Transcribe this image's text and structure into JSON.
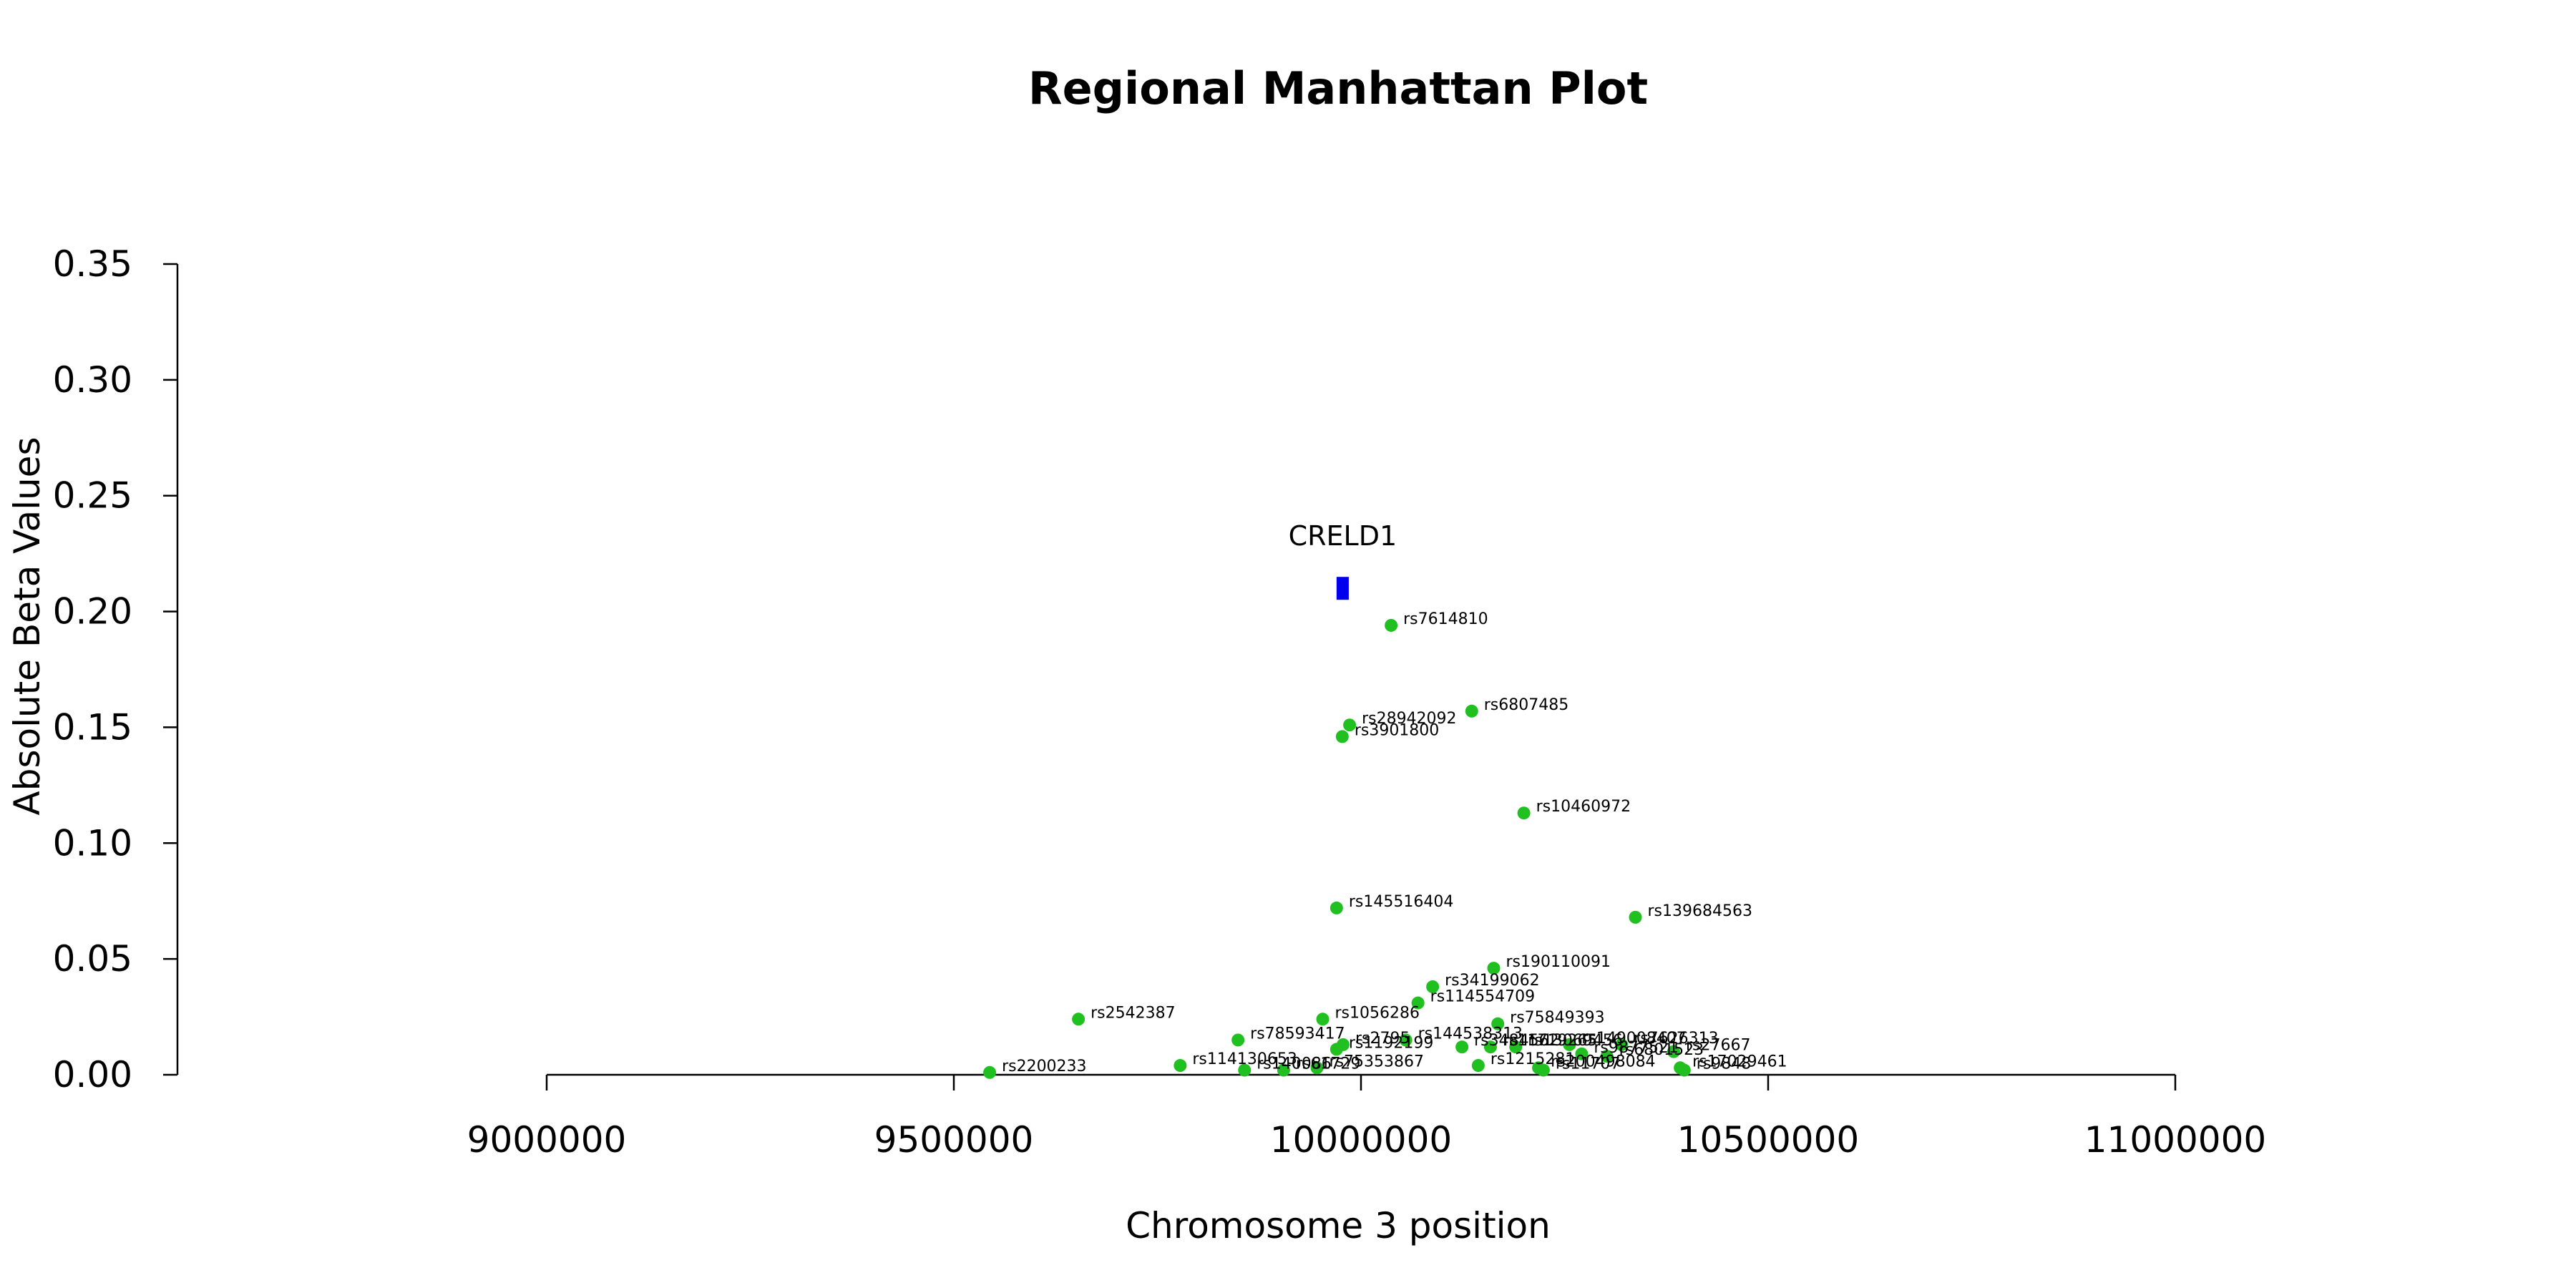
{
  "chart_data": {
    "type": "scatter",
    "title": "Regional Manhattan Plot",
    "xlabel": "Chromosome 3 position",
    "ylabel": "Absolute Beta Values",
    "xlim": [
      9000000,
      11000000
    ],
    "ylim": [
      0,
      0.35
    ],
    "x_ticks": [
      9000000,
      9500000,
      10000000,
      10500000,
      11000000
    ],
    "x_tick_labels": [
      "9000000",
      "9500000",
      "10000000",
      "10500000",
      "11000000"
    ],
    "y_ticks": [
      0,
      0.05,
      0.1,
      0.15,
      0.2,
      0.25,
      0.3,
      0.35
    ],
    "y_tick_labels": [
      "0.00",
      "0.05",
      "0.10",
      "0.15",
      "0.20",
      "0.25",
      "0.30",
      "0.35"
    ],
    "grid": false,
    "legend": "none",
    "point_color": "#1FC01F",
    "gene_color": "#0000EE",
    "gene": {
      "name": "CRELD1",
      "start": 9970000,
      "end": 9985000,
      "y": 0.21
    },
    "points": [
      {
        "label": "rs7614810",
        "x": 10037000,
        "y": 0.194
      },
      {
        "label": "rs6807485",
        "x": 10136000,
        "y": 0.157
      },
      {
        "label": "rs28942092",
        "x": 9986000,
        "y": 0.151
      },
      {
        "label": "rs3901800",
        "x": 9977000,
        "y": 0.146
      },
      {
        "label": "rs10460972",
        "x": 10200000,
        "y": 0.113
      },
      {
        "label": "rs145516404",
        "x": 9970000,
        "y": 0.072
      },
      {
        "label": "rs139684563",
        "x": 10337000,
        "y": 0.068
      },
      {
        "label": "rs190110091",
        "x": 10163000,
        "y": 0.046
      },
      {
        "label": "rs34199062",
        "x": 10088000,
        "y": 0.038
      },
      {
        "label": "rs114554709",
        "x": 10070000,
        "y": 0.031
      },
      {
        "label": "rs2542387",
        "x": 9653000,
        "y": 0.024
      },
      {
        "label": "rs1056286",
        "x": 9953000,
        "y": 0.024
      },
      {
        "label": "rs75849393",
        "x": 10168000,
        "y": 0.022
      },
      {
        "label": "rs78593417",
        "x": 9849000,
        "y": 0.015
      },
      {
        "label": "rs144538313",
        "x": 10055000,
        "y": 0.015
      },
      {
        "label": "rs2795",
        "x": 9978000,
        "y": 0.013
      },
      {
        "label": "rs149008407",
        "x": 10256000,
        "y": 0.013
      },
      {
        "label": "rs7626313",
        "x": 10320000,
        "y": 0.013
      },
      {
        "label": "rs3484562",
        "x": 10124000,
        "y": 0.012
      },
      {
        "label": "rs11719265",
        "x": 10159000,
        "y": 0.012
      },
      {
        "label": "rs13069456",
        "x": 10190000,
        "y": 0.012
      },
      {
        "label": "rs1192199",
        "x": 9970000,
        "y": 0.011
      },
      {
        "label": "rs27667",
        "x": 10384000,
        "y": 0.01
      },
      {
        "label": "rs9877521",
        "x": 10271000,
        "y": 0.009
      },
      {
        "label": "rs6801523",
        "x": 10302000,
        "y": 0.008
      },
      {
        "label": "rs114130653",
        "x": 9778000,
        "y": 0.004
      },
      {
        "label": "rs1215281",
        "x": 10144000,
        "y": 0.004
      },
      {
        "label": "rs200498084",
        "x": 10218000,
        "y": 0.003
      },
      {
        "label": "rs17029461",
        "x": 10392000,
        "y": 0.003
      },
      {
        "label": "rs9848",
        "x": 10397000,
        "y": 0.002
      },
      {
        "label": "rs75353867",
        "x": 9946000,
        "y": 0.003
      },
      {
        "label": "rs140086",
        "x": 9857000,
        "y": 0.002
      },
      {
        "label": "rs2200233",
        "x": 9544000,
        "y": 0.001
      },
      {
        "label": "rs61729",
        "x": 9905000,
        "y": 0.002
      },
      {
        "label": "rs11707",
        "x": 10224000,
        "y": 0.002
      }
    ]
  }
}
